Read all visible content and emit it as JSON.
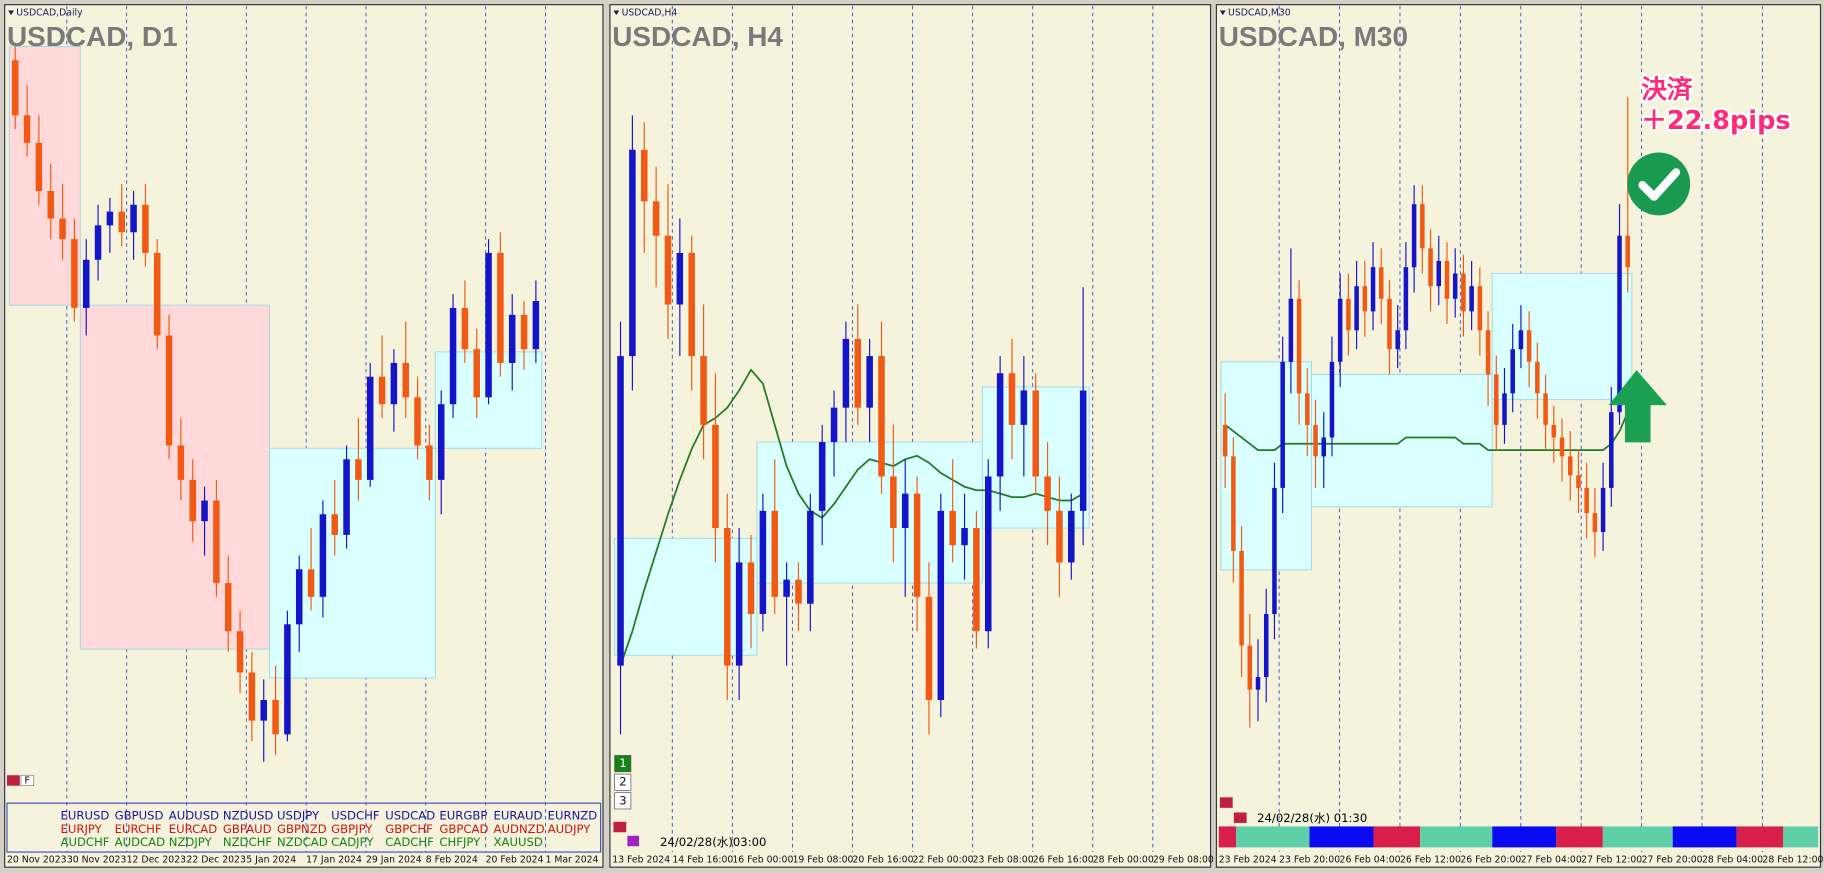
{
  "chart_data": [
    {
      "type": "candlestick",
      "label": "USDCAD,Daily",
      "title": "USDCAD, D1",
      "ylim": [
        1.315,
        1.37
      ],
      "up_color": "#1414c8",
      "down_color": "#f05a14",
      "candles": [
        [
          1.369,
          1.37,
          1.364,
          1.365
        ],
        [
          1.365,
          1.3672,
          1.362,
          1.363
        ],
        [
          1.363,
          1.365,
          1.3585,
          1.3595
        ],
        [
          1.3595,
          1.3615,
          1.356,
          1.3575
        ],
        [
          1.3575,
          1.36,
          1.3545,
          1.356
        ],
        [
          1.356,
          1.3575,
          1.35,
          1.351
        ],
        [
          1.351,
          1.356,
          1.349,
          1.3545
        ],
        [
          1.3545,
          1.3585,
          1.353,
          1.357
        ],
        [
          1.357,
          1.359,
          1.355,
          1.358
        ],
        [
          1.358,
          1.36,
          1.3555,
          1.3565
        ],
        [
          1.3565,
          1.3595,
          1.3545,
          1.3585
        ],
        [
          1.3585,
          1.36,
          1.354,
          1.355
        ],
        [
          1.355,
          1.356,
          1.348,
          1.349
        ],
        [
          1.349,
          1.3505,
          1.34,
          1.341
        ],
        [
          1.341,
          1.343,
          1.337,
          1.3385
        ],
        [
          1.3385,
          1.34,
          1.334,
          1.3355
        ],
        [
          1.3355,
          1.338,
          1.333,
          1.337
        ],
        [
          1.337,
          1.3385,
          1.33,
          1.331
        ],
        [
          1.331,
          1.333,
          1.326,
          1.3275
        ],
        [
          1.3275,
          1.329,
          1.323,
          1.3245
        ],
        [
          1.3245,
          1.326,
          1.3195,
          1.321
        ],
        [
          1.321,
          1.324,
          1.318,
          1.3225
        ],
        [
          1.3225,
          1.325,
          1.3185,
          1.32
        ],
        [
          1.32,
          1.329,
          1.3195,
          1.328
        ],
        [
          1.328,
          1.333,
          1.326,
          1.332
        ],
        [
          1.332,
          1.335,
          1.329,
          1.33
        ],
        [
          1.33,
          1.337,
          1.3285,
          1.336
        ],
        [
          1.336,
          1.3385,
          1.333,
          1.3345
        ],
        [
          1.3345,
          1.341,
          1.3335,
          1.34
        ],
        [
          1.34,
          1.343,
          1.337,
          1.3385
        ],
        [
          1.3385,
          1.347,
          1.338,
          1.346
        ],
        [
          1.346,
          1.349,
          1.343,
          1.344
        ],
        [
          1.344,
          1.348,
          1.342,
          1.347
        ],
        [
          1.347,
          1.35,
          1.343,
          1.3445
        ],
        [
          1.3445,
          1.346,
          1.34,
          1.341
        ],
        [
          1.341,
          1.3425,
          1.337,
          1.3385
        ],
        [
          1.3385,
          1.345,
          1.336,
          1.344
        ],
        [
          1.344,
          1.352,
          1.343,
          1.351
        ],
        [
          1.351,
          1.353,
          1.347,
          1.348
        ],
        [
          1.348,
          1.3495,
          1.343,
          1.3445
        ],
        [
          1.3445,
          1.356,
          1.344,
          1.355
        ],
        [
          1.355,
          1.3565,
          1.346,
          1.347
        ],
        [
          1.347,
          1.352,
          1.345,
          1.3505
        ],
        [
          1.3505,
          1.3515,
          1.3465,
          1.348
        ],
        [
          1.348,
          1.353,
          1.347,
          1.3515
        ]
      ],
      "zones": [
        {
          "from": 0,
          "to": 5,
          "low": 1.3512,
          "high": 1.37,
          "color": "#ffd9d9"
        },
        {
          "from": 6,
          "to": 21,
          "low": 1.3262,
          "high": 1.3512,
          "color": "#ffd9d9"
        },
        {
          "from": 22,
          "to": 35,
          "low": 1.3241,
          "high": 1.3408,
          "color": "#d9ffff"
        },
        {
          "from": 36,
          "to": 44,
          "low": 1.3408,
          "high": 1.3478,
          "color": "#d9ffff"
        }
      ],
      "xlabels": [
        "20 Nov 2023",
        "30 Nov 2023",
        "12 Dec 2023",
        "22 Dec 2023",
        "5 Jan 2024",
        "17 Jan 2024",
        "29 Jan 2024",
        "8 Feb 2024",
        "20 Feb 2024",
        "1 Mar 2024"
      ],
      "buttons": [
        "F"
      ],
      "symbols": [
        {
          "color": "#1414a0",
          "names": [
            "EURUSD",
            "GBPUSD",
            "AUDUSD",
            "NZDUSD",
            "USDJPY",
            "USDCHF",
            "USDCAD",
            "EURGBP",
            "EURAUD",
            "EURNZD"
          ]
        },
        {
          "color": "#d01414",
          "names": [
            "EURJPY",
            "EURCHF",
            "EURCAD",
            "GBPAUD",
            "GBPNZD",
            "GBPJPY",
            "GBPCHF",
            "GBPCAD",
            "AUDNZD",
            "AUDJPY"
          ]
        },
        {
          "color": "#148214",
          "names": [
            "AUDCHF",
            "AUDCAD",
            "NZDJPY",
            "NZDCHF",
            "NZDCAD",
            "CADJPY",
            "CADCHF",
            "CHFJPY",
            "XAUUSD"
          ]
        }
      ]
    },
    {
      "type": "candlestick",
      "label": "USDCAD,H4",
      "title": "USDCAD, H4",
      "ylim": [
        1.34,
        1.362
      ],
      "up_color": "#1414c8",
      "down_color": "#f05a14",
      "ma_color": "#207a20",
      "candles": [
        [
          1.344,
          1.354,
          1.342,
          1.353
        ],
        [
          1.353,
          1.36,
          1.352,
          1.359
        ],
        [
          1.359,
          1.3598,
          1.356,
          1.3575
        ],
        [
          1.3575,
          1.3585,
          1.355,
          1.3565
        ],
        [
          1.3565,
          1.358,
          1.3535,
          1.3545
        ],
        [
          1.3545,
          1.357,
          1.353,
          1.356
        ],
        [
          1.356,
          1.3565,
          1.352,
          1.353
        ],
        [
          1.353,
          1.3545,
          1.35,
          1.351
        ],
        [
          1.351,
          1.3525,
          1.347,
          1.348
        ],
        [
          1.348,
          1.349,
          1.343,
          1.344
        ],
        [
          1.344,
          1.348,
          1.343,
          1.347
        ],
        [
          1.347,
          1.3478,
          1.3445,
          1.3455
        ],
        [
          1.3455,
          1.349,
          1.345,
          1.3485
        ],
        [
          1.3485,
          1.35,
          1.3455,
          1.346
        ],
        [
          1.346,
          1.347,
          1.344,
          1.3465
        ],
        [
          1.3465,
          1.347,
          1.345,
          1.3458
        ],
        [
          1.3458,
          1.349,
          1.345,
          1.3485
        ],
        [
          1.3485,
          1.351,
          1.3475,
          1.3505
        ],
        [
          1.3505,
          1.352,
          1.3495,
          1.3515
        ],
        [
          1.3515,
          1.354,
          1.3505,
          1.3535
        ],
        [
          1.3535,
          1.3545,
          1.351,
          1.3515
        ],
        [
          1.3515,
          1.3535,
          1.3505,
          1.353
        ],
        [
          1.353,
          1.354,
          1.349,
          1.3495
        ],
        [
          1.3495,
          1.351,
          1.347,
          1.348
        ],
        [
          1.348,
          1.35,
          1.346,
          1.349
        ],
        [
          1.349,
          1.3495,
          1.345,
          1.346
        ],
        [
          1.346,
          1.347,
          1.342,
          1.343
        ],
        [
          1.343,
          1.349,
          1.3425,
          1.3485
        ],
        [
          1.3485,
          1.35,
          1.347,
          1.3475
        ],
        [
          1.3475,
          1.349,
          1.3465,
          1.348
        ],
        [
          1.348,
          1.3485,
          1.3445,
          1.345
        ],
        [
          1.345,
          1.35,
          1.3445,
          1.3495
        ],
        [
          1.3495,
          1.353,
          1.3485,
          1.3525
        ],
        [
          1.3525,
          1.3535,
          1.35,
          1.351
        ],
        [
          1.351,
          1.353,
          1.3495,
          1.352
        ],
        [
          1.352,
          1.3525,
          1.349,
          1.3495
        ],
        [
          1.3495,
          1.3505,
          1.3475,
          1.3485
        ],
        [
          1.3485,
          1.3495,
          1.346,
          1.347
        ],
        [
          1.347,
          1.349,
          1.3465,
          1.3485
        ],
        [
          1.3485,
          1.355,
          1.3475,
          1.352
        ]
      ],
      "ma": [
        1.344,
        1.345,
        1.3462,
        1.3473,
        1.3484,
        1.3494,
        1.3503,
        1.351,
        1.3512,
        1.3515,
        1.352,
        1.3526,
        1.3522,
        1.351,
        1.3498,
        1.349,
        1.3485,
        1.3483,
        1.3487,
        1.3492,
        1.3497,
        1.35,
        1.3499,
        1.3498,
        1.35,
        1.3501,
        1.3499,
        1.3496,
        1.3494,
        1.3492,
        1.3491,
        1.3491,
        1.349,
        1.3489,
        1.3489,
        1.349,
        1.3489,
        1.3488,
        1.3488,
        1.349
      ],
      "zones": [
        {
          "from": 0,
          "to": 11,
          "low": 1.3443,
          "high": 1.3477,
          "color": "#d9ffff"
        },
        {
          "from": 12,
          "to": 30,
          "low": 1.3464,
          "high": 1.3505,
          "color": "#d9ffff"
        },
        {
          "from": 31,
          "to": 39,
          "low": 1.348,
          "high": 1.3521,
          "color": "#d9ffff"
        }
      ],
      "xlabels": [
        "13 Feb 2024",
        "14 Feb 16:00",
        "16 Feb 00:00",
        "19 Feb 08:00",
        "20 Feb 16:00",
        "22 Feb 00:00",
        "23 Feb 08:00",
        "26 Feb 16:00",
        "28 Feb 00:00",
        "29 Feb 08:00"
      ],
      "buttons": [
        "1",
        "2",
        "3"
      ],
      "timestamp": "24/02/28(水)03:00"
    },
    {
      "type": "candlestick",
      "label": "USDCAD,M30",
      "title": "USDCAD, M30",
      "ylim": [
        1.344,
        1.356
      ],
      "up_color": "#1414c8",
      "down_color": "#f05a14",
      "ma_color": "#207a20",
      "candles": [
        [
          1.35,
          1.3505,
          1.349,
          1.3495
        ],
        [
          1.3495,
          1.3498,
          1.3475,
          1.348
        ],
        [
          1.348,
          1.3484,
          1.346,
          1.3465
        ],
        [
          1.3465,
          1.347,
          1.3452,
          1.3458
        ],
        [
          1.3458,
          1.3466,
          1.3453,
          1.346
        ],
        [
          1.346,
          1.3474,
          1.3456,
          1.347
        ],
        [
          1.347,
          1.3494,
          1.3466,
          1.349
        ],
        [
          1.349,
          1.3514,
          1.3486,
          1.351
        ],
        [
          1.351,
          1.3528,
          1.3505,
          1.352
        ],
        [
          1.352,
          1.3523,
          1.35,
          1.3505
        ],
        [
          1.3505,
          1.3509,
          1.3495,
          1.35
        ],
        [
          1.35,
          1.3504,
          1.349,
          1.3495
        ],
        [
          1.3495,
          1.3502,
          1.349,
          1.3498
        ],
        [
          1.3498,
          1.3514,
          1.3495,
          1.351
        ],
        [
          1.351,
          1.3524,
          1.3506,
          1.352
        ],
        [
          1.352,
          1.3524,
          1.3511,
          1.3515
        ],
        [
          1.3515,
          1.3526,
          1.3512,
          1.3522
        ],
        [
          1.3522,
          1.3526,
          1.3514,
          1.3518
        ],
        [
          1.3518,
          1.3529,
          1.3515,
          1.3525
        ],
        [
          1.3525,
          1.3528,
          1.3516,
          1.352
        ],
        [
          1.352,
          1.3523,
          1.3508,
          1.3512
        ],
        [
          1.3512,
          1.3519,
          1.3509,
          1.3515
        ],
        [
          1.3515,
          1.3529,
          1.3512,
          1.3525
        ],
        [
          1.3525,
          1.3538,
          1.3521,
          1.3535
        ],
        [
          1.3535,
          1.3538,
          1.3524,
          1.3528
        ],
        [
          1.3528,
          1.3531,
          1.3518,
          1.3522
        ],
        [
          1.3522,
          1.353,
          1.3519,
          1.3526
        ],
        [
          1.3526,
          1.3529,
          1.3516,
          1.352
        ],
        [
          1.352,
          1.3528,
          1.3517,
          1.3524
        ],
        [
          1.3524,
          1.3527,
          1.3514,
          1.3518
        ],
        [
          1.3518,
          1.3526,
          1.3515,
          1.3522
        ],
        [
          1.3522,
          1.3525,
          1.3511,
          1.3515
        ],
        [
          1.3515,
          1.3518,
          1.3503,
          1.3508
        ],
        [
          1.3508,
          1.3511,
          1.3496,
          1.35
        ],
        [
          1.35,
          1.3509,
          1.3497,
          1.3505
        ],
        [
          1.3505,
          1.3516,
          1.3502,
          1.3512
        ],
        [
          1.3512,
          1.3519,
          1.3509,
          1.3515
        ],
        [
          1.3515,
          1.3518,
          1.3506,
          1.351
        ],
        [
          1.351,
          1.3513,
          1.3501,
          1.3505
        ],
        [
          1.3505,
          1.3508,
          1.3496,
          1.35
        ],
        [
          1.35,
          1.3503,
          1.3494,
          1.3498
        ],
        [
          1.3498,
          1.3501,
          1.3491,
          1.3495
        ],
        [
          1.3495,
          1.3499,
          1.3488,
          1.3492
        ],
        [
          1.3492,
          1.3496,
          1.3486,
          1.349
        ],
        [
          1.349,
          1.3494,
          1.3482,
          1.3486
        ],
        [
          1.3486,
          1.349,
          1.3479,
          1.3483
        ],
        [
          1.3483,
          1.3494,
          1.348,
          1.349
        ],
        [
          1.349,
          1.3506,
          1.3487,
          1.3502
        ],
        [
          1.3502,
          1.3535,
          1.35,
          1.353
        ],
        [
          1.353,
          1.3552,
          1.3521,
          1.3525
        ]
      ],
      "ma": [
        1.35,
        1.3499,
        1.3498,
        1.3497,
        1.3496,
        1.3496,
        1.3496,
        1.3497,
        1.3497,
        1.3497,
        1.3497,
        1.3497,
        1.3497,
        1.3497,
        1.3497,
        1.3497,
        1.3497,
        1.3497,
        1.3497,
        1.3497,
        1.3497,
        1.3497,
        1.3498,
        1.3498,
        1.3498,
        1.3498,
        1.3498,
        1.3498,
        1.3498,
        1.3497,
        1.3497,
        1.3497,
        1.3496,
        1.3496,
        1.3496,
        1.3496,
        1.3496,
        1.3496,
        1.3496,
        1.3496,
        1.3496,
        1.3496,
        1.3496,
        1.3496,
        1.3496,
        1.3496,
        1.3496,
        1.3497,
        1.3499,
        1.3502
      ],
      "zones": [
        {
          "from": 0,
          "to": 10,
          "low": 1.3477,
          "high": 1.351,
          "color": "#d9ffff"
        },
        {
          "from": 11,
          "to": 32,
          "low": 1.3487,
          "high": 1.3508,
          "color": "#d9ffff"
        },
        {
          "from": 33,
          "to": 49,
          "low": 1.3504,
          "high": 1.3524,
          "color": "#d9ffff"
        }
      ],
      "xlabels": [
        "23 Feb 2024",
        "23 Feb 20:00",
        "26 Feb 04:00",
        "26 Feb 12:00",
        "26 Feb 20:00",
        "27 Feb 04:00",
        "27 Feb 12:00",
        "27 Feb 20:00",
        "28 Feb 04:00",
        "28 Feb 12:00"
      ],
      "timestamp": "24/02/28(水) 01:30",
      "annotations": [
        "決済",
        "＋22.8pips"
      ]
    }
  ]
}
